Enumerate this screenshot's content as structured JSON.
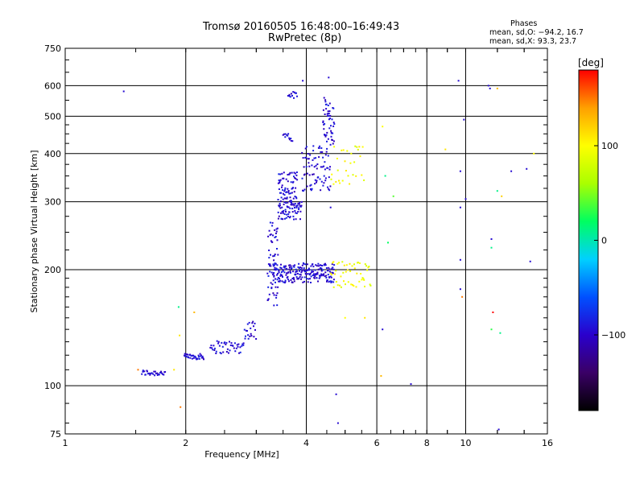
{
  "header": {
    "title_line1": "Tromsø 20160505 16:48:00–16:49:43",
    "title_line2": "RwPretec (8p)"
  },
  "phase_info": {
    "heading": "Phases",
    "line_o": "mean, sd,O: −94.2, 16.7",
    "line_x": "mean, sd,X:  93.3, 23.7"
  },
  "colorbar": {
    "unit": "[deg]",
    "min": -180,
    "max": 180,
    "tick_values": [
      100,
      0,
      -100
    ],
    "tick_labels": [
      "100",
      "0",
      "−100"
    ],
    "palette": [
      "#000000",
      "#3a0066",
      "#2a00cc",
      "#0050ff",
      "#00d0ff",
      "#00ff60",
      "#aaff00",
      "#ffff00",
      "#ffa000",
      "#ff0000"
    ]
  },
  "chart_data": {
    "type": "scatter",
    "title": "Tromsø 20160505 16:48:00–16:49:43",
    "subtitle": "RwPretec (8p)",
    "xlabel": "Frequency [MHz]",
    "ylabel": "Stationary phase Virtual Height [km]",
    "xscale": "log",
    "yscale": "log",
    "xlim": [
      1,
      16
    ],
    "ylim": [
      75,
      750
    ],
    "xticks": [
      1,
      2,
      4,
      6,
      8,
      10,
      16
    ],
    "xtick_labels": [
      "1",
      "2",
      "4",
      "6",
      "8",
      "10",
      "16"
    ],
    "yticks": [
      75,
      100,
      200,
      300,
      400,
      500,
      600,
      750
    ],
    "ytick_labels": [
      "75",
      "100",
      "200",
      "300",
      "400",
      "500",
      "600",
      "750"
    ],
    "grid": true,
    "color_variable": "phase [deg]",
    "segments": [
      {
        "x_range": [
          1.55,
          1.78
        ],
        "y_range": [
          106,
          110
        ],
        "n": 30,
        "phase": -95
      },
      {
        "x_range": [
          1.98,
          2.22
        ],
        "y_range": [
          117,
          121
        ],
        "n": 35,
        "phase": -95
      },
      {
        "x_range": [
          2.3,
          2.8
        ],
        "y_range": [
          121,
          131
        ],
        "n": 45,
        "phase": -95
      },
      {
        "x_range": [
          2.8,
          3.0
        ],
        "y_range": [
          132,
          148
        ],
        "n": 20,
        "phase": -95
      },
      {
        "x_range": [
          3.2,
          3.4
        ],
        "y_range": [
          160,
          270
        ],
        "n": 60,
        "phase": -95
      },
      {
        "x_range": [
          3.3,
          4.7
        ],
        "y_range": [
          185,
          208
        ],
        "n": 220,
        "phase": -95
      },
      {
        "x_range": [
          3.4,
          3.9
        ],
        "y_range": [
          270,
          300
        ],
        "n": 70,
        "phase": -95
      },
      {
        "x_range": [
          3.4,
          3.8
        ],
        "y_range": [
          300,
          360
        ],
        "n": 70,
        "phase": -95
      },
      {
        "x_range": [
          3.9,
          4.6
        ],
        "y_range": [
          320,
          420
        ],
        "n": 80,
        "phase": -95
      },
      {
        "x_range": [
          4.4,
          4.7
        ],
        "y_range": [
          420,
          560
        ],
        "n": 50,
        "phase": -95
      },
      {
        "x_range": [
          3.5,
          3.7
        ],
        "y_range": [
          430,
          450
        ],
        "n": 12,
        "phase": -95
      },
      {
        "x_range": [
          3.6,
          3.8
        ],
        "y_range": [
          555,
          580
        ],
        "n": 12,
        "phase": -95
      },
      {
        "x_range": [
          4.6,
          5.8
        ],
        "y_range": [
          180,
          210
        ],
        "n": 50,
        "phase": 95
      },
      {
        "x_range": [
          4.6,
          5.6
        ],
        "y_range": [
          330,
          420
        ],
        "n": 30,
        "phase": 95
      }
    ],
    "isolated_points": [
      {
        "x": 1.4,
        "y": 580,
        "phase": -95
      },
      {
        "x": 1.52,
        "y": 110,
        "phase": 150
      },
      {
        "x": 1.87,
        "y": 110,
        "phase": 110
      },
      {
        "x": 1.92,
        "y": 160,
        "phase": 10
      },
      {
        "x": 1.93,
        "y": 135,
        "phase": 110
      },
      {
        "x": 1.94,
        "y": 88,
        "phase": 150
      },
      {
        "x": 2.1,
        "y": 155,
        "phase": 130
      },
      {
        "x": 3.92,
        "y": 618,
        "phase": -95
      },
      {
        "x": 4.55,
        "y": 630,
        "phase": -95
      },
      {
        "x": 4.6,
        "y": 290,
        "phase": -95
      },
      {
        "x": 4.75,
        "y": 95,
        "phase": -95
      },
      {
        "x": 4.8,
        "y": 80,
        "phase": -95
      },
      {
        "x": 5.0,
        "y": 150,
        "phase": 100
      },
      {
        "x": 5.6,
        "y": 150,
        "phase": 110
      },
      {
        "x": 6.15,
        "y": 106,
        "phase": 130
      },
      {
        "x": 6.2,
        "y": 140,
        "phase": -95
      },
      {
        "x": 6.2,
        "y": 470,
        "phase": 100
      },
      {
        "x": 6.3,
        "y": 350,
        "phase": 10
      },
      {
        "x": 6.4,
        "y": 235,
        "phase": 20
      },
      {
        "x": 6.6,
        "y": 310,
        "phase": 40
      },
      {
        "x": 7.3,
        "y": 101,
        "phase": -95
      },
      {
        "x": 8.9,
        "y": 410,
        "phase": 110
      },
      {
        "x": 9.6,
        "y": 618,
        "phase": -95
      },
      {
        "x": 9.7,
        "y": 360,
        "phase": -95
      },
      {
        "x": 9.7,
        "y": 290,
        "phase": -95
      },
      {
        "x": 9.7,
        "y": 212,
        "phase": -95
      },
      {
        "x": 9.7,
        "y": 178,
        "phase": -95
      },
      {
        "x": 9.8,
        "y": 170,
        "phase": 150
      },
      {
        "x": 9.9,
        "y": 490,
        "phase": -95
      },
      {
        "x": 10.0,
        "y": 305,
        "phase": -95
      },
      {
        "x": 11.4,
        "y": 600,
        "phase": -95
      },
      {
        "x": 11.5,
        "y": 590,
        "phase": -95
      },
      {
        "x": 11.6,
        "y": 240,
        "phase": -95
      },
      {
        "x": 11.6,
        "y": 228,
        "phase": 10
      },
      {
        "x": 11.6,
        "y": 140,
        "phase": 30
      },
      {
        "x": 11.7,
        "y": 155,
        "phase": 180
      },
      {
        "x": 12.0,
        "y": 590,
        "phase": 130
      },
      {
        "x": 12.0,
        "y": 320,
        "phase": 10
      },
      {
        "x": 12.1,
        "y": 77,
        "phase": -95
      },
      {
        "x": 12.2,
        "y": 137,
        "phase": 10
      },
      {
        "x": 12.3,
        "y": 310,
        "phase": 120
      },
      {
        "x": 13.0,
        "y": 360,
        "phase": -95
      },
      {
        "x": 14.2,
        "y": 365,
        "phase": -95
      },
      {
        "x": 14.5,
        "y": 210,
        "phase": -95
      },
      {
        "x": 14.8,
        "y": 400,
        "phase": 100
      }
    ]
  }
}
